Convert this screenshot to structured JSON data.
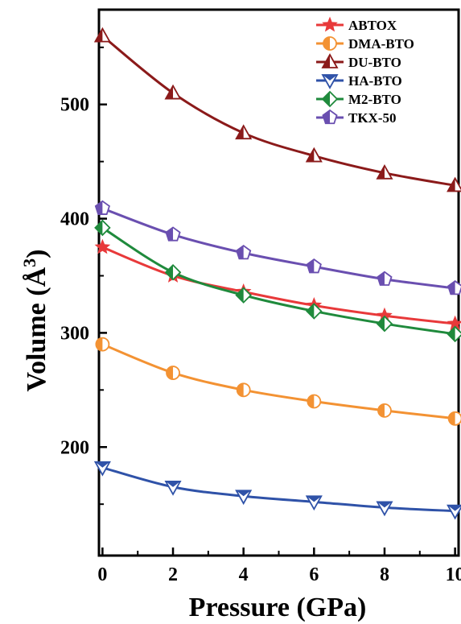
{
  "chart_data": {
    "type": "line",
    "xlabel": "Pressure (GPa)",
    "ylabel_text": "Volume (Å",
    "ylabel_sup": "3",
    "ylabel_close": ")",
    "x": [
      0,
      2,
      4,
      6,
      8,
      10
    ],
    "xlim": [
      -0.1,
      10.1
    ],
    "ylim": [
      105,
      583
    ],
    "xticks": [
      0,
      2,
      4,
      6,
      8,
      10
    ],
    "yticks": [
      200,
      300,
      400,
      500
    ],
    "xtick_labels": [
      "0",
      "2",
      "4",
      "6",
      "8",
      "10"
    ],
    "ytick_labels": [
      "200",
      "300",
      "400",
      "500"
    ],
    "legend_position": "top-right",
    "grid": false,
    "series": [
      {
        "name": "ABTOX",
        "color": "#e8393a",
        "marker": "star",
        "values": [
          375,
          350,
          336,
          324,
          315,
          308
        ]
      },
      {
        "name": "DMA-BTO",
        "color": "#f39233",
        "marker": "circle",
        "values": [
          290,
          265,
          250,
          240,
          232,
          225
        ]
      },
      {
        "name": "DU-BTO",
        "color": "#8b1a1a",
        "marker": "triangle-up",
        "values": [
          560,
          510,
          475,
          455,
          440,
          429
        ]
      },
      {
        "name": "HA-BTO",
        "color": "#2f52a8",
        "marker": "triangle-down",
        "values": [
          182,
          165,
          157,
          152,
          147,
          144
        ]
      },
      {
        "name": "M2-BTO",
        "color": "#1f8a3c",
        "marker": "diamond",
        "values": [
          392,
          353,
          333,
          319,
          308,
          299
        ]
      },
      {
        "name": "TKX-50",
        "color": "#6a4fb0",
        "marker": "pentagon",
        "values": [
          409,
          386,
          370,
          358,
          347,
          339
        ]
      }
    ]
  }
}
